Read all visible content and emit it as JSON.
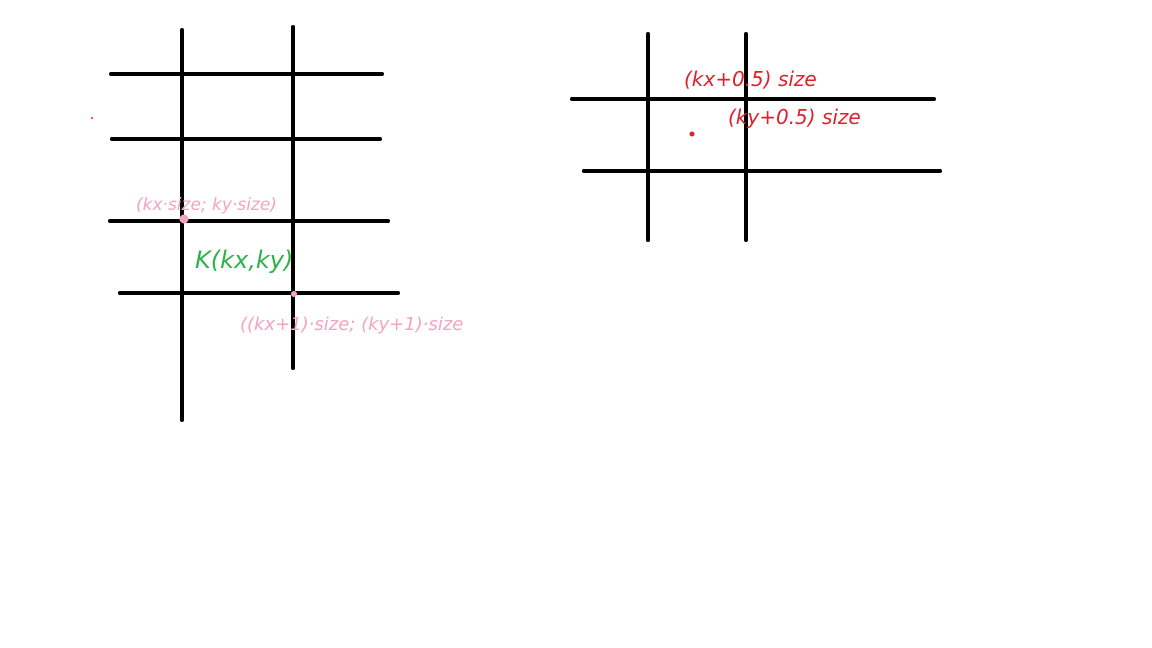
{
  "colors": {
    "background": "#ffffff",
    "grid": "#000000",
    "pink_annotation": "#f4a3c0",
    "green_annotation": "#2db34a",
    "red_annotation": "#e0202a"
  },
  "left_diagram": {
    "corner_top_left_label": "(kx·size; ky·size)",
    "cell_label": "K(kx,ky)",
    "corner_bottom_right_label": "((kx+1)·size; (ky+1)·size"
  },
  "right_diagram": {
    "center_x_label": "(kx+0.5) size",
    "center_y_label": "(ky+0.5) size"
  }
}
